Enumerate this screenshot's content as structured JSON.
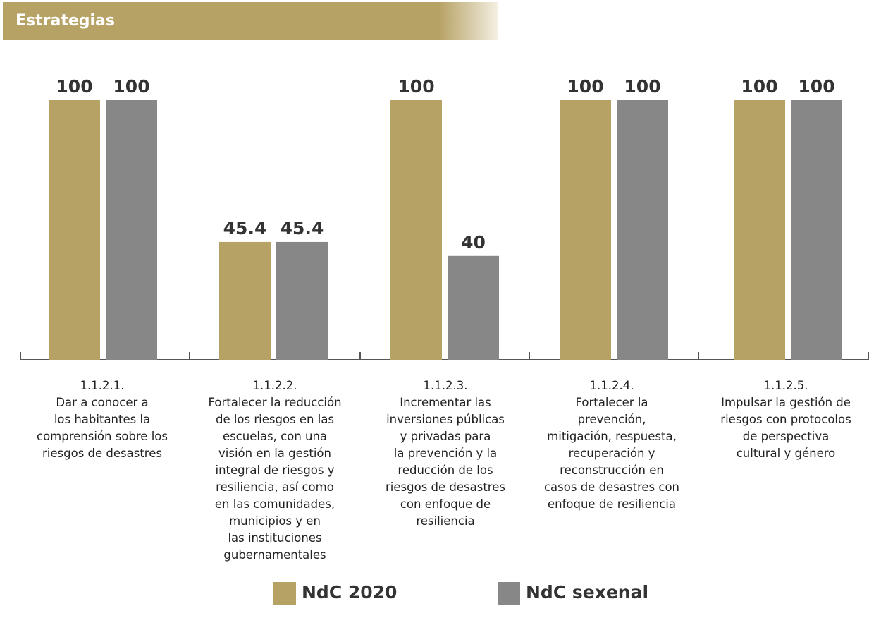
{
  "header": {
    "title": "Estrategias",
    "color": "#b7a266"
  },
  "colors": {
    "ndc2020": "#b7a266",
    "sexenal": "#878787",
    "axis": "#555555"
  },
  "chart_data": {
    "type": "bar",
    "title": "",
    "xlabel": "",
    "ylabel": "",
    "ylim": [
      0,
      100
    ],
    "grid": false,
    "legend_position": "bottom-center",
    "categories": [
      "1.1.2.1.\nDar a conocer a\nlos habitantes la\ncomprensión sobre los\nriesgos de desastres",
      "1.1.2.2.\nFortalecer la reducción\nde los riesgos en las\nescuelas, con una\nvisión en la gestión\nintegral de riesgos y\nresiliencia, así como\nen las comunidades,\nmunicipios y en\nlas instituciones\ngubernamentales",
      "1.1.2.3.\nIncrementar las\ninversiones públicas\ny privadas para\nla prevención y la\nreducción de los\nriesgos de desastres\ncon enfoque de\nresiliencia",
      "1.1.2.4.\nFortalecer la\nprevención,\nmitigación, respuesta,\nrecuperación y\nreconstrucción en\ncasos de desastres con\nenfoque de resiliencia",
      "1.1.2.5.\nImpulsar la gestión de\nriesgos con protocolos\nde perspectiva\ncultural y género"
    ],
    "series": [
      {
        "name": "NdC 2020",
        "values": [
          100,
          45.4,
          100,
          100,
          100
        ],
        "labels": [
          "100",
          "45.4",
          "100",
          "100",
          "100"
        ]
      },
      {
        "name": "NdC sexenal",
        "values": [
          100,
          45.4,
          40,
          100,
          100
        ],
        "labels": [
          "100",
          "45.4",
          "40",
          "100",
          "100"
        ]
      }
    ]
  }
}
